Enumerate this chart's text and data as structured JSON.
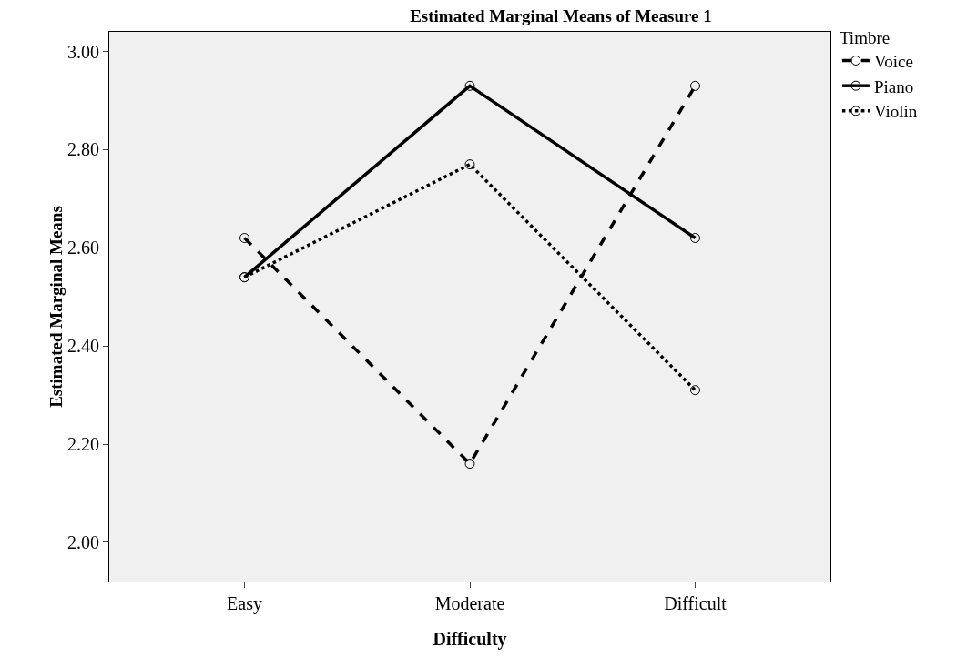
{
  "chart_data": {
    "type": "line",
    "title": "Estimated Marginal Means of Measure 1",
    "xlabel": "Difficulty",
    "ylabel": "Estimated Marginal Means",
    "legend_title": "Timbre",
    "categories": [
      "Easy",
      "Moderate",
      "Difficult"
    ],
    "series": [
      {
        "name": "Voice",
        "color": "#000000",
        "line_style": "dashed",
        "values": [
          2.62,
          2.16,
          2.93
        ]
      },
      {
        "name": "Piano",
        "color": "#000000",
        "line_style": "solid",
        "values": [
          2.54,
          2.93,
          2.62
        ]
      },
      {
        "name": "Violin",
        "color": "#000000",
        "line_style": "dotted",
        "values": [
          2.54,
          2.77,
          2.31
        ]
      }
    ],
    "ylim": [
      1.92,
      3.04
    ],
    "yticks": [
      {
        "value": 2,
        "label": "2.00"
      },
      {
        "value": 2.2,
        "label": "2.20"
      },
      {
        "value": 2.4,
        "label": "2.40"
      },
      {
        "value": 2.6,
        "label": "2.60"
      },
      {
        "value": 2.8,
        "label": "2.80"
      },
      {
        "value": 3,
        "label": "3.00"
      }
    ],
    "grid": false,
    "legend": "top right",
    "marker": "circle"
  }
}
